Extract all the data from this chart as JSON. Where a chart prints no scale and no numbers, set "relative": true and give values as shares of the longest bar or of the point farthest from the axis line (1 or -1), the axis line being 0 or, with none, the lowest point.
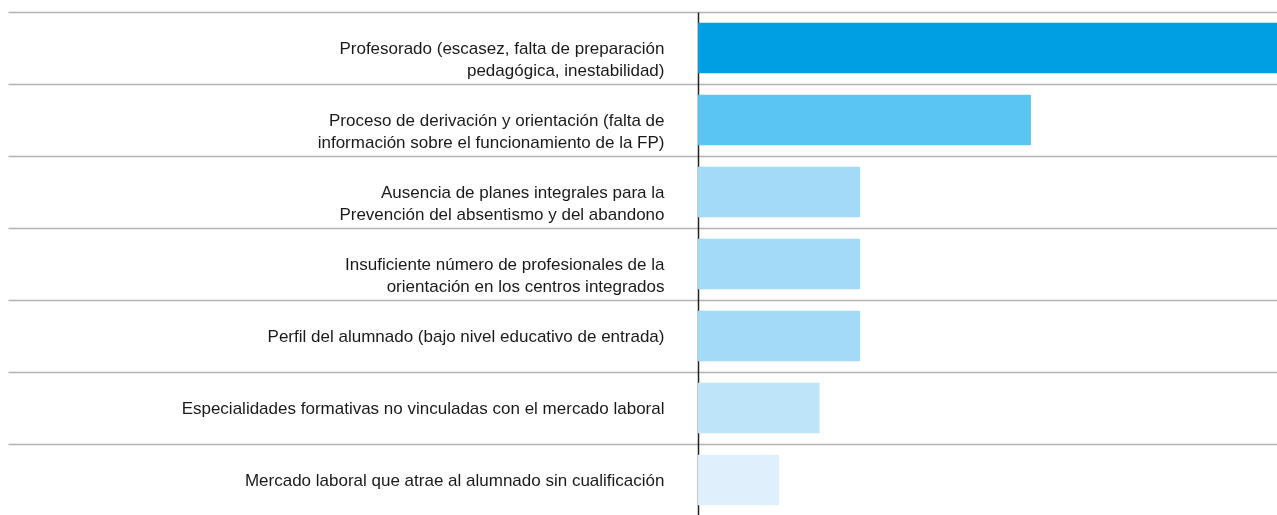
{
  "chart_data": {
    "type": "bar",
    "orientation": "horizontal",
    "relative": true,
    "grid": "y",
    "categories": [
      "Profesorado (escasez, falta de preparación pedagógica, inestabilidad)",
      "Proceso de derivación y orientación (falta de información sobre el funcionamiento de la FP)",
      "Ausencia de planes integrales para la Prevención del absentismo y del abandono",
      "Insuficiente número de profesionales de la orientación en los centros integrados",
      "Perfil del alumnado (bajo nivel educativo de entrada)",
      "Especialidades formativas no vinculadas con el mercado laboral",
      "Mercado laboral que atrae al alumnado sin cualificación"
    ],
    "values": [
      1,
      0.575,
      0.28,
      0.28,
      0.28,
      0.21,
      0.14
    ],
    "colors": [
      "#009fe3",
      "#5bc5f2",
      "#a3daf7",
      "#a3daf7",
      "#a3daf7",
      "#bde4f9",
      "#dff0fc"
    ]
  }
}
